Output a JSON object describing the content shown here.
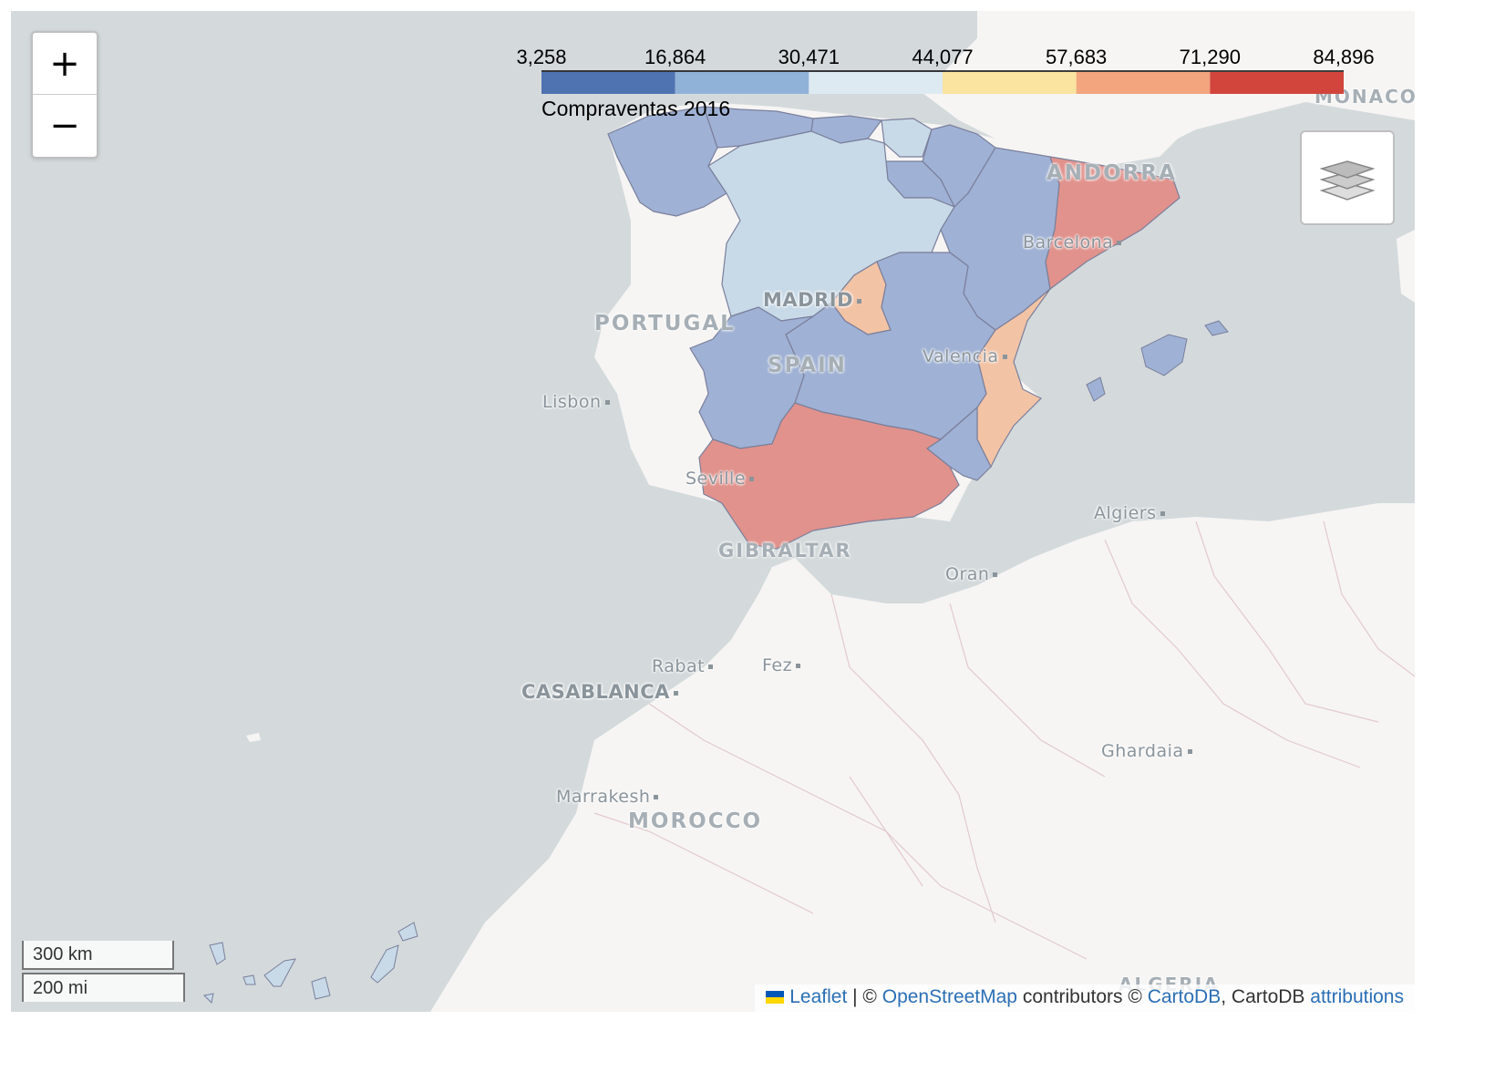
{
  "legend": {
    "ticks": [
      "3,258",
      "16,864",
      "30,471",
      "44,077",
      "57,683",
      "71,290",
      "84,896"
    ],
    "caption": "Compraventas 2016",
    "colors": [
      "#4f72b0",
      "#91b2d8",
      "#deeaf2",
      "#fbe3a0",
      "#f3a57e",
      "#d2453d"
    ]
  },
  "map_labels": {
    "countries": [
      "PORTUGAL",
      "SPAIN",
      "MOROCCO",
      "ANDORRA",
      "GIBRALTAR",
      "MONACO",
      "ALGERIA"
    ],
    "cities": [
      "MADRID",
      "Barcelona",
      "Valencia",
      "Lisbon",
      "Seville",
      "Algiers",
      "Oran",
      "Rabat",
      "Fez",
      "CASABLANCA",
      "Marrakesh",
      "Ghardaia"
    ]
  },
  "zoom": {
    "in_label": "+",
    "out_label": "−"
  },
  "scale": {
    "km": "300 km",
    "mi": "200 mi"
  },
  "attribution": {
    "leaflet": "Leaflet",
    "sep1": " | © ",
    "osm": "OpenStreetMap",
    "contributors": " contributors © ",
    "carto": "CartoDB",
    "sep2": ", CartoDB ",
    "attributions": "attributions"
  },
  "region_colors": {
    "low": "#9fb1d4",
    "light": "#c8dae8",
    "mid_high": "#f3c3a5",
    "high": "#e1928c",
    "land": "#f6f5f4",
    "sea": "#d4dadc",
    "border": "#7a7f9b"
  }
}
